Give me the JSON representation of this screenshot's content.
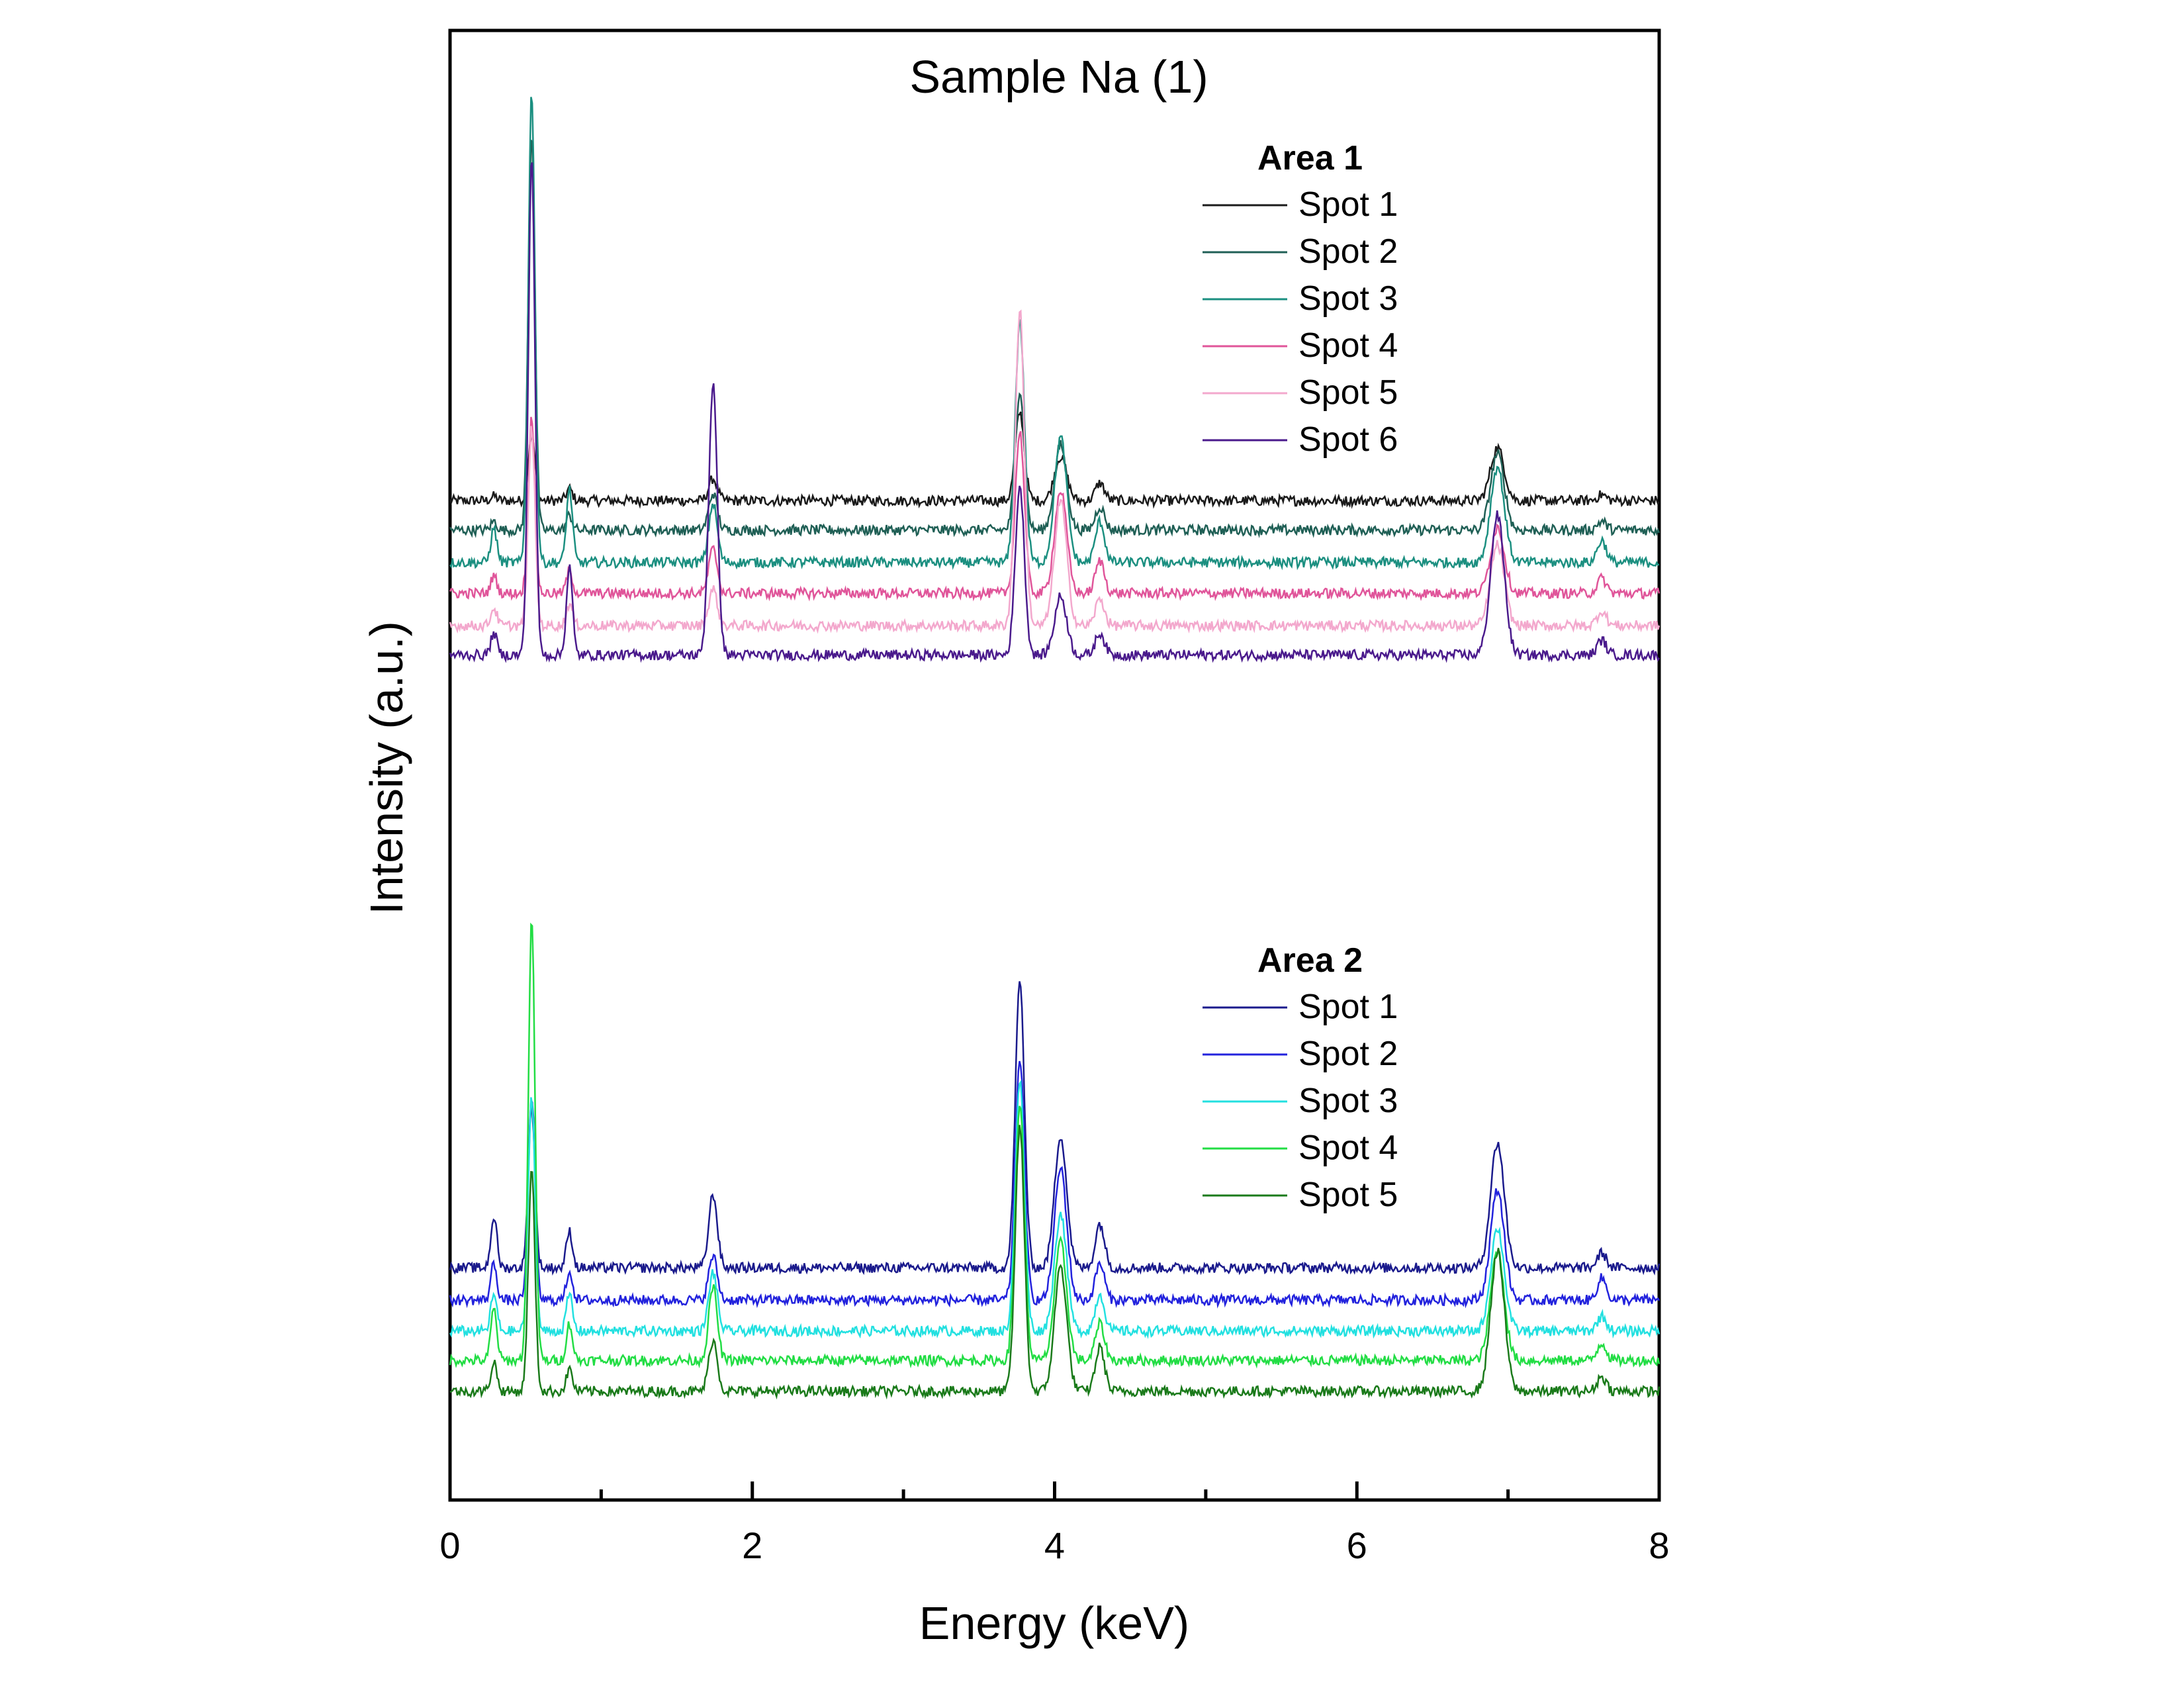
{
  "chart_data": {
    "type": "line",
    "title": "Sample Na (1)",
    "xlabel": "Energy (keV)",
    "ylabel": "Intensity (a.u.)",
    "xlim": [
      0,
      8
    ],
    "ylim": [
      0,
      100
    ],
    "x_ticks": [
      0,
      2,
      4,
      6,
      8
    ],
    "x_tick_labels": [
      "0",
      "2",
      "4",
      "6",
      "8"
    ],
    "x_minor_ticks": [
      1,
      3,
      5,
      7
    ],
    "y_ticks_shown": false,
    "grid": false,
    "legend_placement": "inside, right of center",
    "groups": [
      {
        "name": "Area 1",
        "series": [
          {
            "name": "Spot 1",
            "color": "#1a1a1a",
            "baseline": 68.0,
            "peaks": [
              [
                0.29,
                0.3
              ],
              [
                0.54,
                4.5
              ],
              [
                0.79,
                0.8
              ],
              [
                1.74,
                1.5
              ],
              [
                3.77,
                6.0
              ],
              [
                4.04,
                3.0
              ],
              [
                4.3,
                1.2
              ],
              [
                6.93,
                3.6
              ],
              [
                7.62,
                0.4
              ]
            ]
          },
          {
            "name": "Spot 2",
            "color": "#1f5f55",
            "baseline": 66.0,
            "peaks": [
              [
                0.29,
                0.6
              ],
              [
                0.54,
                27.0
              ],
              [
                0.79,
                1.0
              ],
              [
                1.74,
                2.5
              ],
              [
                3.77,
                9.5
              ],
              [
                4.04,
                5.8
              ],
              [
                4.3,
                1.6
              ],
              [
                6.93,
                5.2
              ],
              [
                7.62,
                0.6
              ]
            ]
          },
          {
            "name": "Spot 3",
            "color": "#1b8f80",
            "baseline": 63.8,
            "peaks": [
              [
                0.29,
                2.3
              ],
              [
                0.54,
                32.0
              ],
              [
                0.79,
                5.0
              ],
              [
                1.74,
                4.0
              ],
              [
                3.77,
                16.5
              ],
              [
                4.04,
                8.5
              ],
              [
                4.3,
                2.8
              ],
              [
                6.93,
                6.5
              ],
              [
                7.62,
                1.5
              ]
            ]
          },
          {
            "name": "Spot 4",
            "color": "#e0559a",
            "baseline": 61.7,
            "peaks": [
              [
                0.29,
                1.2
              ],
              [
                0.54,
                12.0
              ],
              [
                0.79,
                1.5
              ],
              [
                1.74,
                3.0
              ],
              [
                3.77,
                11.0
              ],
              [
                4.04,
                7.0
              ],
              [
                4.3,
                2.2
              ],
              [
                6.93,
                4.5
              ],
              [
                7.62,
                1.0
              ]
            ]
          },
          {
            "name": "Spot 5",
            "color": "#f3a8cd",
            "baseline": 59.5,
            "peaks": [
              [
                0.29,
                1.2
              ],
              [
                0.54,
                13.5
              ],
              [
                0.79,
                1.5
              ],
              [
                1.74,
                2.5
              ],
              [
                3.77,
                21.5
              ],
              [
                4.04,
                8.5
              ],
              [
                4.3,
                1.8
              ],
              [
                6.93,
                5.5
              ],
              [
                7.62,
                1.0
              ]
            ]
          },
          {
            "name": "Spot 6",
            "color": "#4a1a8c",
            "baseline": 57.5,
            "peaks": [
              [
                0.29,
                1.5
              ],
              [
                0.54,
                34.0
              ],
              [
                0.79,
                6.0
              ],
              [
                1.74,
                18.5
              ],
              [
                3.77,
                11.5
              ],
              [
                4.04,
                4.0
              ],
              [
                4.3,
                1.5
              ],
              [
                6.93,
                9.5
              ],
              [
                7.62,
                1.0
              ]
            ]
          }
        ]
      },
      {
        "name": "Area 2",
        "series": [
          {
            "name": "Spot 1",
            "color": "#1a1a8c",
            "baseline": 15.8,
            "peaks": [
              [
                0.29,
                3.5
              ],
              [
                0.54,
                11.0
              ],
              [
                0.79,
                2.5
              ],
              [
                1.74,
                5.0
              ],
              [
                3.77,
                19.5
              ],
              [
                4.04,
                9.0
              ],
              [
                4.3,
                3.0
              ],
              [
                6.93,
                8.5
              ],
              [
                7.62,
                1.0
              ]
            ]
          },
          {
            "name": "Spot 2",
            "color": "#2222dd",
            "baseline": 13.6,
            "peaks": [
              [
                0.29,
                2.5
              ],
              [
                0.54,
                14.0
              ],
              [
                0.79,
                2.0
              ],
              [
                1.74,
                3.0
              ],
              [
                3.77,
                16.5
              ],
              [
                4.04,
                9.0
              ],
              [
                4.3,
                2.5
              ],
              [
                6.93,
                7.5
              ],
              [
                7.62,
                1.5
              ]
            ]
          },
          {
            "name": "Spot 3",
            "color": "#22e0e0",
            "baseline": 11.5,
            "peaks": [
              [
                0.29,
                2.5
              ],
              [
                0.54,
                16.0
              ],
              [
                0.79,
                2.5
              ],
              [
                1.74,
                4.0
              ],
              [
                3.77,
                17.0
              ],
              [
                4.04,
                8.0
              ],
              [
                4.3,
                2.5
              ],
              [
                6.93,
                7.0
              ],
              [
                7.62,
                1.0
              ]
            ]
          },
          {
            "name": "Spot 4",
            "color": "#22dd44",
            "baseline": 9.5,
            "peaks": [
              [
                0.29,
                3.5
              ],
              [
                0.54,
                30.0
              ],
              [
                0.79,
                2.5
              ],
              [
                1.74,
                5.0
              ],
              [
                3.77,
                17.5
              ],
              [
                4.04,
                8.0
              ],
              [
                4.3,
                2.5
              ],
              [
                6.93,
                7.5
              ],
              [
                7.62,
                1.2
              ]
            ]
          },
          {
            "name": "Spot 5",
            "color": "#1a7a1a",
            "baseline": 7.4,
            "peaks": [
              [
                0.29,
                2.0
              ],
              [
                0.54,
                15.0
              ],
              [
                0.79,
                1.5
              ],
              [
                1.74,
                3.5
              ],
              [
                3.77,
                18.0
              ],
              [
                4.04,
                8.5
              ],
              [
                4.3,
                3.0
              ],
              [
                6.93,
                9.5
              ],
              [
                7.62,
                1.0
              ]
            ]
          }
        ]
      }
    ]
  }
}
